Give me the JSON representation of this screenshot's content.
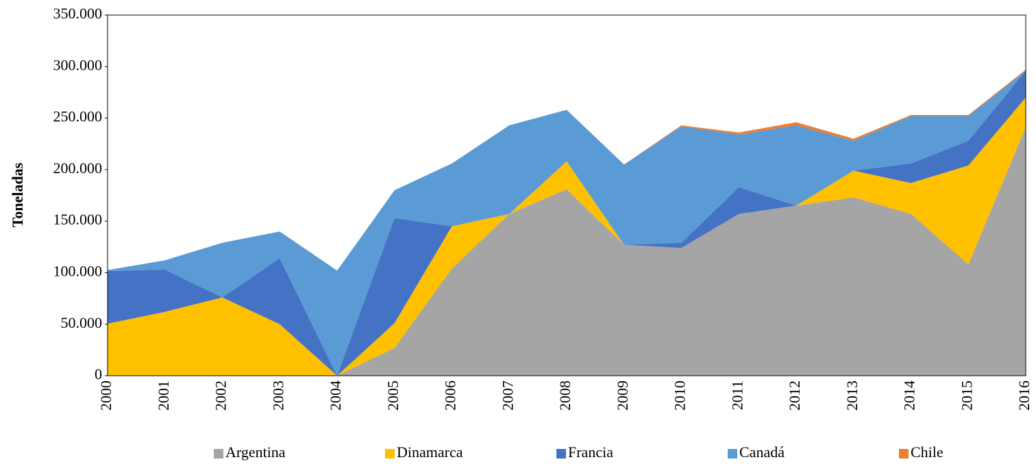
{
  "chart_data": {
    "type": "stacked-area",
    "y_label": "Toneladas",
    "categories": [
      "2000",
      "2001",
      "2002",
      "2003",
      "2004",
      "2005",
      "2006",
      "2007",
      "2008",
      "2009",
      "2010",
      "2011",
      "2012",
      "2013",
      "2014",
      "2015",
      "2016"
    ],
    "series": [
      {
        "name": "Argentina",
        "color": "#a5a5a5",
        "values": [
          0,
          0,
          0,
          0,
          0,
          27000,
          104000,
          157000,
          181000,
          127000,
          124000,
          157000,
          165000,
          173000,
          157000,
          108000,
          241000
        ]
      },
      {
        "name": "Dinamarca",
        "color": "#ffc000",
        "values": [
          50500,
          62000,
          76000,
          50000,
          0,
          24000,
          41000,
          0,
          27000,
          0,
          0,
          0,
          0,
          26000,
          30000,
          96000,
          29000
        ]
      },
      {
        "name": "Francia",
        "color": "#4472c4",
        "values": [
          51000,
          41000,
          0,
          64000,
          0,
          102000,
          0,
          0,
          0,
          0,
          5000,
          26000,
          0,
          0,
          19000,
          24000,
          26000
        ]
      },
      {
        "name": "Canadá",
        "color": "#5b9bd5",
        "values": [
          1000,
          9000,
          53000,
          26000,
          102000,
          27000,
          61000,
          86000,
          50000,
          78000,
          113000,
          51000,
          78000,
          29000,
          46000,
          24000,
          0
        ]
      },
      {
        "name": "Chile",
        "color": "#ed7d31",
        "values": [
          0,
          0,
          0,
          0,
          0,
          0,
          0,
          0,
          0,
          0,
          1000,
          2000,
          3000,
          2000,
          1000,
          1000,
          1000
        ]
      }
    ],
    "ylim": [
      0,
      350000
    ],
    "yticks": [
      0,
      {
        "value": 50000,
        "label": "50.000"
      },
      {
        "value": 100000,
        "label": "100.000"
      },
      {
        "value": 150000,
        "label": "150.000"
      },
      {
        "value": 200000,
        "label": "200.000"
      },
      {
        "value": 250000,
        "label": "250.000"
      },
      {
        "value": 300000,
        "label": "300.000"
      },
      {
        "value": 350000,
        "label": "350.000"
      }
    ],
    "grid": false,
    "legend": "bottom"
  }
}
